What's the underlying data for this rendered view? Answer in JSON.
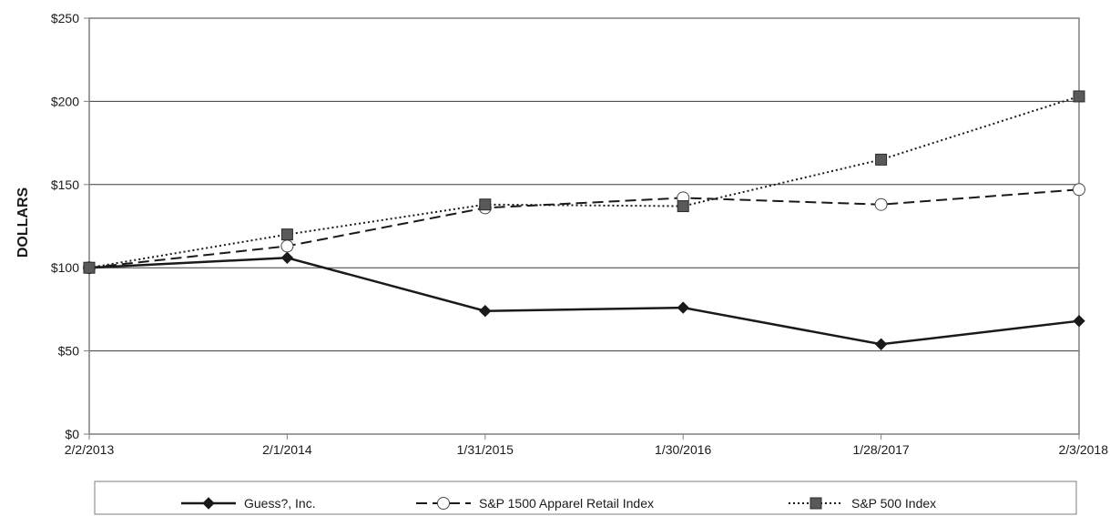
{
  "chart_data": {
    "type": "line",
    "title": "",
    "xlabel": "",
    "ylabel": "DOLLARS",
    "categories": [
      "2/2/2013",
      "2/1/2014",
      "1/31/2015",
      "1/30/2016",
      "1/28/2017",
      "2/3/2018"
    ],
    "y_ticks": [
      "$0",
      "$50",
      "$100",
      "$150",
      "$200",
      "$250"
    ],
    "y_tick_values": [
      0,
      50,
      100,
      150,
      200,
      250
    ],
    "ylim": [
      0,
      250
    ],
    "grid": "horizontal",
    "legend_position": "bottom",
    "series": [
      {
        "name": "Guess?, Inc.",
        "values": [
          100,
          106,
          74,
          76,
          54,
          68
        ],
        "marker": "diamond-filled",
        "line": "solid",
        "color": "#1a1a1a"
      },
      {
        "name": "S&P 1500 Apparel Retail Index",
        "values": [
          100,
          113,
          136,
          142,
          138,
          147
        ],
        "marker": "circle-open",
        "line": "dashed",
        "color": "#1a1a1a"
      },
      {
        "name": "S&P 500 Index",
        "values": [
          100,
          120,
          138,
          137,
          165,
          203
        ],
        "marker": "square-filled",
        "line": "dotted",
        "color": "#1a1a1a",
        "marker_fill": "#595959"
      }
    ]
  }
}
